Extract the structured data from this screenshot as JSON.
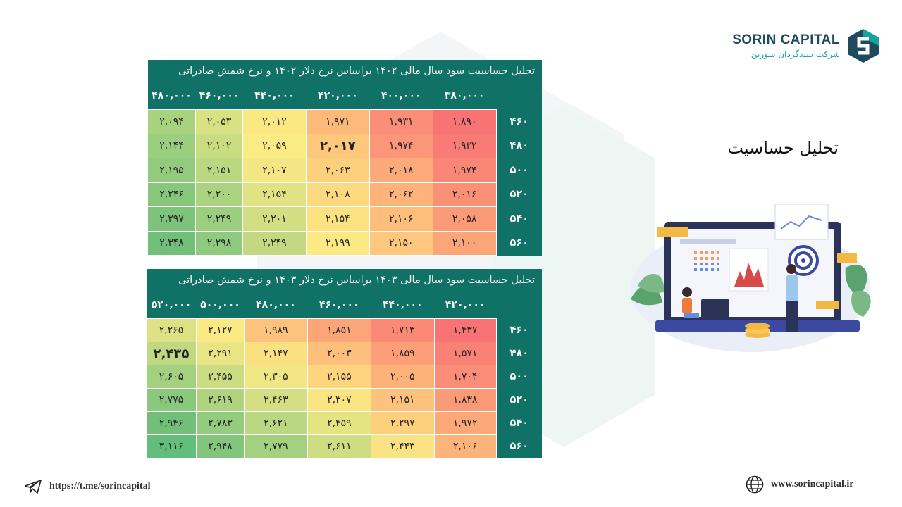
{
  "logo": {
    "title": "SORIN CAPITAL",
    "subtitle": "شرکت سبدگردان سورین"
  },
  "page_title": "تحلیل حساسیت",
  "tables": [
    {
      "title": "تحلیل حساسیت سود سال مالی ۱۴۰۲ براساس نرخ دلار ۱۴۰۲ و نرخ شمش صادراتی",
      "columns": [
        "۳۸۰,۰۰۰",
        "۴۰۰,۰۰۰",
        "۴۲۰,۰۰۰",
        "۴۴۰,۰۰۰",
        "۴۶۰,۰۰۰",
        "۴۸۰,۰۰۰"
      ],
      "rows": [
        {
          "label": "۴۶۰",
          "values": [
            "۱,۸۹۰",
            "۱,۹۳۱",
            "۱,۹۷۱",
            "۲,۰۱۲",
            "۲,۰۵۳",
            "۲,۰۹۴"
          ]
        },
        {
          "label": "۴۸۰",
          "values": [
            "۱,۹۳۲",
            "۱,۹۷۴",
            "۲,۰۱۷",
            "۲,۰۵۹",
            "۲,۱۰۲",
            "۲,۱۴۴"
          ]
        },
        {
          "label": "۵۰۰",
          "values": [
            "۱,۹۷۴",
            "۲,۰۱۸",
            "۲,۰۶۳",
            "۲,۱۰۷",
            "۲,۱۵۱",
            "۲,۱۹۵"
          ]
        },
        {
          "label": "۵۲۰",
          "values": [
            "۲,۰۱۶",
            "۲,۰۶۲",
            "۲,۱۰۸",
            "۲,۱۵۴",
            "۲,۲۰۰",
            "۲,۲۴۶"
          ]
        },
        {
          "label": "۵۴۰",
          "values": [
            "۲,۰۵۸",
            "۲,۱۰۶",
            "۲,۱۵۴",
            "۲,۲۰۱",
            "۲,۲۴۹",
            "۲,۲۹۷"
          ]
        },
        {
          "label": "۵۶۰",
          "values": [
            "۲,۱۰۰",
            "۲,۱۵۰",
            "۲,۱۹۹",
            "۲,۲۴۹",
            "۲,۲۹۸",
            "۲,۳۴۸"
          ]
        }
      ],
      "colors": [
        [
          "#f87474",
          "#fb8e76",
          "#fdb97a",
          "#fbe882",
          "#d8e283",
          "#a7d37f"
        ],
        [
          "#f87c75",
          "#fb9778",
          "#fdc77c",
          "#fbeb85",
          "#c8dc82",
          "#9bce7e"
        ],
        [
          "#fa8776",
          "#fcaa79",
          "#fdd07e",
          "#f2e784",
          "#b9d881",
          "#92cb7d"
        ],
        [
          "#fa9177",
          "#fdb37a",
          "#fed97f",
          "#e1e283",
          "#aad380",
          "#87c77c"
        ],
        [
          "#fb9a77",
          "#fdbd7b",
          "#fde282",
          "#d2de82",
          "#9bcf7f",
          "#7ec37b"
        ],
        [
          "#fca579",
          "#fdc77d",
          "#fbe983",
          "#c3d981",
          "#8ecb7e",
          "#72bf7a"
        ]
      ]
    },
    {
      "title": "تحلیل حساسیت سود سال مالی ۱۴۰۳ براساس نرخ دلار ۱۴۰۳ و نرخ شمش صادراتی",
      "columns": [
        "۴۲۰,۰۰۰",
        "۴۴۰,۰۰۰",
        "۴۶۰,۰۰۰",
        "۴۸۰,۰۰۰",
        "۵۰۰,۰۰۰",
        "۵۲۰,۰۰۰"
      ],
      "rows": [
        {
          "label": "۴۶۰",
          "values": [
            "۱,۴۳۷",
            "۱,۷۱۳",
            "۱,۸۵۱",
            "۱,۹۸۹",
            "۲,۱۲۷",
            "۲,۲۶۵"
          ]
        },
        {
          "label": "۴۸۰",
          "values": [
            "۱,۵۷۱",
            "۱,۸۵۹",
            "۲,۰۰۳",
            "۲,۱۴۷",
            "۲,۲۹۱",
            "۲,۴۳۵"
          ]
        },
        {
          "label": "۵۰۰",
          "values": [
            "۱,۷۰۴",
            "۲,۰۰۵",
            "۲,۱۵۵",
            "۲,۳۰۵",
            "۲,۴۵۵",
            "۲,۶۰۵"
          ]
        },
        {
          "label": "۵۲۰",
          "values": [
            "۱,۸۳۸",
            "۲,۱۵۱",
            "۲,۳۰۷",
            "۲,۴۶۳",
            "۲,۶۱۹",
            "۲,۷۷۵"
          ]
        },
        {
          "label": "۵۴۰",
          "values": [
            "۱,۹۷۲",
            "۲,۲۹۷",
            "۲,۴۵۹",
            "۲,۶۲۱",
            "۲,۷۸۳",
            "۲,۹۴۶"
          ]
        },
        {
          "label": "۵۶۰",
          "values": [
            "۲,۱۰۶",
            "۲,۴۴۳",
            "۲,۶۱۱",
            "۲,۷۷۹",
            "۲,۹۴۸",
            "۳,۱۱۶"
          ]
        }
      ],
      "colors": [
        [
          "#f87474",
          "#fa8a76",
          "#fca579",
          "#fdc37c",
          "#fbe983",
          "#dce283"
        ],
        [
          "#f98175",
          "#fc9f79",
          "#fdbf7c",
          "#fbe082",
          "#e9e584",
          "#c0d881"
        ],
        [
          "#fa8d77",
          "#fdb27a",
          "#fed47f",
          "#f0e784",
          "#cbdc82",
          "#a3d17f"
        ],
        [
          "#fb9a77",
          "#fdc27c",
          "#fbe583",
          "#d4df83",
          "#aed480",
          "#8ac87d"
        ],
        [
          "#fca879",
          "#fdd07e",
          "#e5e483",
          "#bad881",
          "#94cc7e",
          "#72bf7a"
        ],
        [
          "#fdb47a",
          "#fbe282",
          "#cfdd82",
          "#a3d17f",
          "#83c57c",
          "#63be7b"
        ]
      ]
    }
  ],
  "footer": {
    "telegram": "https://t.me/sorincapital",
    "website": "www.sorincapital.ir"
  },
  "icons": [
    "telegram-icon",
    "globe-icon",
    "sorin-logo-mark",
    "sensitivity-illustration"
  ]
}
